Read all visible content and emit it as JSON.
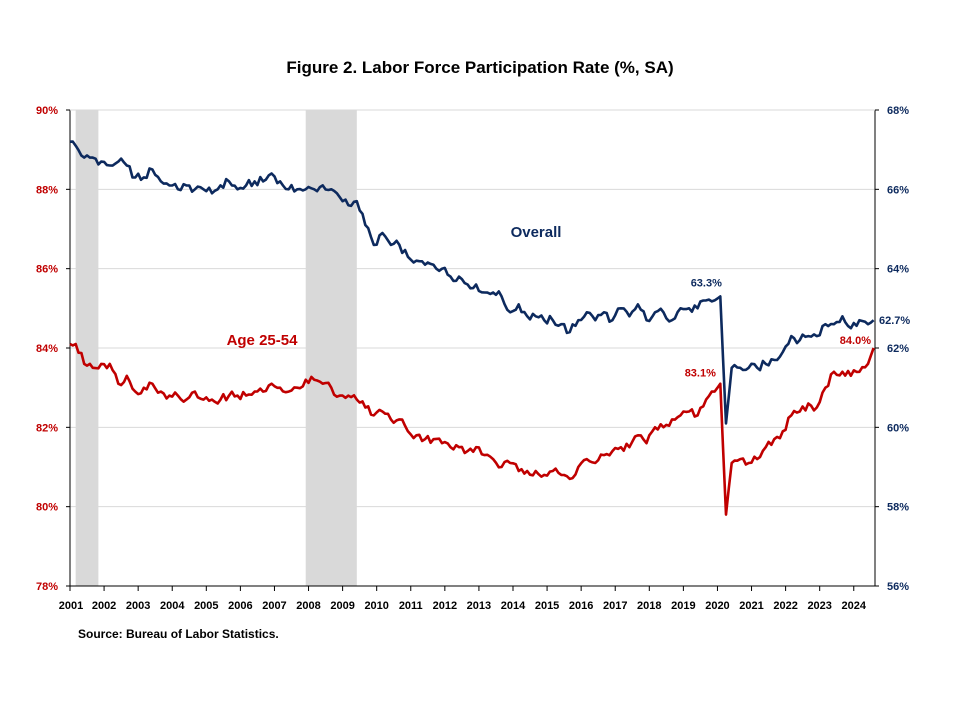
{
  "title": "Figure 2. Labor Force Participation  Rate (%, SA)",
  "source": "Source: Bureau of Labor Statistics.",
  "colors": {
    "overall": "#0d2a5e",
    "age25_54": "#c00000",
    "recession": "#d9d9d9",
    "grid": "#d9d9d9"
  },
  "chart_data": {
    "type": "line",
    "title": "Figure 2. Labor Force Participation  Rate (%, SA)",
    "y_left": {
      "range": [
        78,
        90
      ],
      "ticks": [
        "78%",
        "80%",
        "82%",
        "84%",
        "86%",
        "88%",
        "90%"
      ],
      "series": "Age 25-54"
    },
    "y_right": {
      "range": [
        56,
        68
      ],
      "ticks": [
        "56%",
        "58%",
        "60%",
        "62%",
        "64%",
        "66%",
        "68%"
      ],
      "series": "Overall"
    },
    "x_range": [
      "2001-01",
      "2024-08"
    ],
    "x_ticks": [
      "2001",
      "2002",
      "2003",
      "2004",
      "2005",
      "2006",
      "2007",
      "2008",
      "2009",
      "2010",
      "2011",
      "2012",
      "2013",
      "2014",
      "2015",
      "2016",
      "2017",
      "2018",
      "2019",
      "2020",
      "2021",
      "2022",
      "2023",
      "2024"
    ],
    "recessions": [
      [
        "2001-03",
        "2001-11"
      ],
      [
        "2007-12",
        "2009-06"
      ]
    ],
    "grid": "horizontal",
    "series": [
      {
        "name": "Overall",
        "axis": "right",
        "points": [
          [
            "2001-01",
            67.2
          ],
          [
            "2001-03",
            67.1
          ],
          [
            "2001-06",
            66.8
          ],
          [
            "2001-09",
            66.8
          ],
          [
            "2001-12",
            66.7
          ],
          [
            "2002-03",
            66.6
          ],
          [
            "2002-06",
            66.7
          ],
          [
            "2002-09",
            66.6
          ],
          [
            "2002-12",
            66.3
          ],
          [
            "2003-03",
            66.3
          ],
          [
            "2003-06",
            66.5
          ],
          [
            "2003-09",
            66.2
          ],
          [
            "2003-12",
            66.1
          ],
          [
            "2004-03",
            66.0
          ],
          [
            "2004-06",
            66.1
          ],
          [
            "2004-09",
            66.0
          ],
          [
            "2004-12",
            66.0
          ],
          [
            "2005-03",
            65.9
          ],
          [
            "2005-06",
            66.1
          ],
          [
            "2005-09",
            66.2
          ],
          [
            "2005-12",
            66.0
          ],
          [
            "2006-03",
            66.1
          ],
          [
            "2006-06",
            66.2
          ],
          [
            "2006-09",
            66.2
          ],
          [
            "2006-12",
            66.4
          ],
          [
            "2007-03",
            66.2
          ],
          [
            "2007-06",
            66.0
          ],
          [
            "2007-09",
            66.0
          ],
          [
            "2007-12",
            66.0
          ],
          [
            "2008-03",
            66.0
          ],
          [
            "2008-06",
            66.1
          ],
          [
            "2008-09",
            66.0
          ],
          [
            "2008-12",
            65.8
          ],
          [
            "2009-03",
            65.6
          ],
          [
            "2009-06",
            65.7
          ],
          [
            "2009-09",
            65.1
          ],
          [
            "2009-12",
            64.6
          ],
          [
            "2010-03",
            64.9
          ],
          [
            "2010-06",
            64.6
          ],
          [
            "2010-09",
            64.6
          ],
          [
            "2010-12",
            64.3
          ],
          [
            "2011-03",
            64.2
          ],
          [
            "2011-06",
            64.1
          ],
          [
            "2011-09",
            64.1
          ],
          [
            "2011-12",
            64.0
          ],
          [
            "2012-03",
            63.8
          ],
          [
            "2012-06",
            63.8
          ],
          [
            "2012-09",
            63.6
          ],
          [
            "2012-12",
            63.6
          ],
          [
            "2013-03",
            63.4
          ],
          [
            "2013-06",
            63.4
          ],
          [
            "2013-09",
            63.3
          ],
          [
            "2013-12",
            62.9
          ],
          [
            "2014-03",
            63.1
          ],
          [
            "2014-06",
            62.8
          ],
          [
            "2014-09",
            62.8
          ],
          [
            "2014-12",
            62.7
          ],
          [
            "2015-03",
            62.7
          ],
          [
            "2015-06",
            62.6
          ],
          [
            "2015-09",
            62.4
          ],
          [
            "2015-12",
            62.7
          ],
          [
            "2016-03",
            62.9
          ],
          [
            "2016-06",
            62.7
          ],
          [
            "2016-09",
            62.9
          ],
          [
            "2016-12",
            62.7
          ],
          [
            "2017-03",
            63.0
          ],
          [
            "2017-06",
            62.8
          ],
          [
            "2017-09",
            63.1
          ],
          [
            "2017-12",
            62.7
          ],
          [
            "2018-03",
            62.9
          ],
          [
            "2018-06",
            62.9
          ],
          [
            "2018-09",
            62.7
          ],
          [
            "2018-12",
            63.0
          ],
          [
            "2019-03",
            63.0
          ],
          [
            "2019-06",
            63.0
          ],
          [
            "2019-09",
            63.2
          ],
          [
            "2019-12",
            63.2
          ],
          [
            "2020-02",
            63.3
          ],
          [
            "2020-04",
            60.1
          ],
          [
            "2020-06",
            61.5
          ],
          [
            "2020-09",
            61.5
          ],
          [
            "2020-12",
            61.5
          ],
          [
            "2021-03",
            61.5
          ],
          [
            "2021-06",
            61.6
          ],
          [
            "2021-09",
            61.7
          ],
          [
            "2021-12",
            61.9
          ],
          [
            "2022-03",
            62.3
          ],
          [
            "2022-06",
            62.2
          ],
          [
            "2022-09",
            62.3
          ],
          [
            "2022-12",
            62.3
          ],
          [
            "2023-03",
            62.6
          ],
          [
            "2023-06",
            62.6
          ],
          [
            "2023-09",
            62.8
          ],
          [
            "2023-12",
            62.5
          ],
          [
            "2024-03",
            62.7
          ],
          [
            "2024-06",
            62.6
          ],
          [
            "2024-08",
            62.7
          ]
        ]
      },
      {
        "name": "Age 25-54",
        "axis": "left",
        "points": [
          [
            "2001-01",
            84.1
          ],
          [
            "2001-03",
            84.1
          ],
          [
            "2001-06",
            83.6
          ],
          [
            "2001-09",
            83.5
          ],
          [
            "2001-12",
            83.6
          ],
          [
            "2002-03",
            83.6
          ],
          [
            "2002-06",
            83.1
          ],
          [
            "2002-09",
            83.3
          ],
          [
            "2002-12",
            82.9
          ],
          [
            "2003-03",
            83.0
          ],
          [
            "2003-06",
            83.1
          ],
          [
            "2003-09",
            82.9
          ],
          [
            "2003-12",
            82.8
          ],
          [
            "2004-03",
            82.8
          ],
          [
            "2004-06",
            82.7
          ],
          [
            "2004-09",
            82.9
          ],
          [
            "2004-12",
            82.7
          ],
          [
            "2005-03",
            82.7
          ],
          [
            "2005-06",
            82.7
          ],
          [
            "2005-09",
            82.8
          ],
          [
            "2005-12",
            82.8
          ],
          [
            "2006-03",
            82.8
          ],
          [
            "2006-06",
            82.9
          ],
          [
            "2006-09",
            82.9
          ],
          [
            "2006-12",
            83.1
          ],
          [
            "2007-03",
            83.0
          ],
          [
            "2007-06",
            82.9
          ],
          [
            "2007-09",
            83.0
          ],
          [
            "2007-12",
            83.2
          ],
          [
            "2008-03",
            83.2
          ],
          [
            "2008-06",
            83.1
          ],
          [
            "2008-09",
            83.0
          ],
          [
            "2008-12",
            82.8
          ],
          [
            "2009-03",
            82.8
          ],
          [
            "2009-06",
            82.7
          ],
          [
            "2009-09",
            82.5
          ],
          [
            "2009-12",
            82.3
          ],
          [
            "2010-03",
            82.4
          ],
          [
            "2010-06",
            82.2
          ],
          [
            "2010-09",
            82.2
          ],
          [
            "2010-12",
            81.9
          ],
          [
            "2011-03",
            81.8
          ],
          [
            "2011-06",
            81.7
          ],
          [
            "2011-09",
            81.7
          ],
          [
            "2011-12",
            81.6
          ],
          [
            "2012-03",
            81.5
          ],
          [
            "2012-06",
            81.5
          ],
          [
            "2012-09",
            81.4
          ],
          [
            "2012-12",
            81.5
          ],
          [
            "2013-03",
            81.3
          ],
          [
            "2013-06",
            81.2
          ],
          [
            "2013-09",
            81.0
          ],
          [
            "2013-12",
            81.1
          ],
          [
            "2014-03",
            80.9
          ],
          [
            "2014-06",
            80.9
          ],
          [
            "2014-09",
            80.9
          ],
          [
            "2014-12",
            80.8
          ],
          [
            "2015-03",
            80.9
          ],
          [
            "2015-06",
            80.8
          ],
          [
            "2015-09",
            80.7
          ],
          [
            "2015-12",
            81.0
          ],
          [
            "2016-03",
            81.2
          ],
          [
            "2016-06",
            81.1
          ],
          [
            "2016-09",
            81.3
          ],
          [
            "2016-12",
            81.4
          ],
          [
            "2017-03",
            81.5
          ],
          [
            "2017-06",
            81.5
          ],
          [
            "2017-09",
            81.8
          ],
          [
            "2017-12",
            81.6
          ],
          [
            "2018-03",
            82.0
          ],
          [
            "2018-06",
            82.0
          ],
          [
            "2018-09",
            82.2
          ],
          [
            "2018-12",
            82.3
          ],
          [
            "2019-03",
            82.4
          ],
          [
            "2019-06",
            82.3
          ],
          [
            "2019-09",
            82.7
          ],
          [
            "2019-12",
            82.9
          ],
          [
            "2020-02",
            83.1
          ],
          [
            "2020-04",
            79.8
          ],
          [
            "2020-06",
            81.1
          ],
          [
            "2020-09",
            81.2
          ],
          [
            "2020-12",
            81.1
          ],
          [
            "2021-03",
            81.2
          ],
          [
            "2021-06",
            81.5
          ],
          [
            "2021-09",
            81.7
          ],
          [
            "2021-12",
            81.9
          ],
          [
            "2022-03",
            82.3
          ],
          [
            "2022-06",
            82.4
          ],
          [
            "2022-09",
            82.6
          ],
          [
            "2022-12",
            82.5
          ],
          [
            "2023-03",
            83.0
          ],
          [
            "2023-06",
            83.4
          ],
          [
            "2023-09",
            83.4
          ],
          [
            "2023-12",
            83.3
          ],
          [
            "2024-03",
            83.4
          ],
          [
            "2024-06",
            83.6
          ],
          [
            "2024-08",
            84.0
          ]
        ]
      }
    ],
    "annotations": [
      {
        "text": "Overall",
        "series": "Overall"
      },
      {
        "text": "Age 25-54",
        "series": "Age 25-54"
      },
      {
        "text": "63.3%",
        "date": "2020-02",
        "series": "Overall"
      },
      {
        "text": "83.1%",
        "date": "2020-02",
        "series": "Age 25-54"
      },
      {
        "text": "62.7%",
        "date": "2024-08",
        "series": "Overall"
      },
      {
        "text": "84.0%",
        "date": "2024-08",
        "series": "Age 25-54"
      }
    ]
  }
}
